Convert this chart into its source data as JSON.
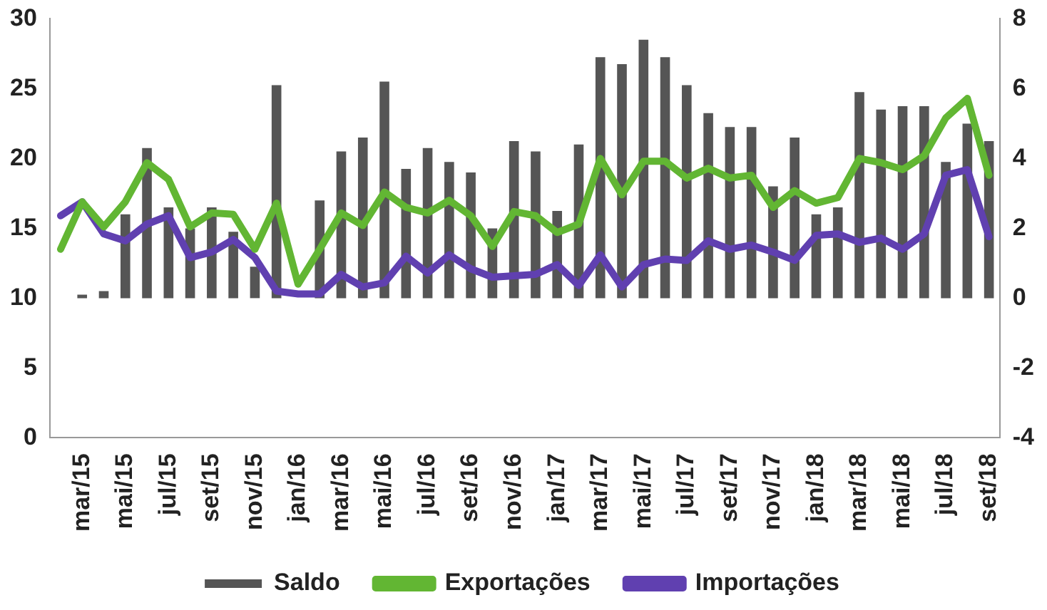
{
  "chart_data": {
    "type": "bar",
    "categories": [
      null,
      "mar/15",
      null,
      "mai/15",
      null,
      "jul/15",
      null,
      "set/15",
      null,
      "nov/15",
      null,
      "jan/16",
      null,
      "mar/16",
      null,
      "mai/16",
      null,
      "jul/16",
      null,
      "set/16",
      null,
      "nov/16",
      null,
      "jan/17",
      null,
      "mar/17",
      null,
      "mai/17",
      null,
      "jul/17",
      null,
      "set/17",
      null,
      "nov/17",
      null,
      "jan/18",
      null,
      "mar/18",
      null,
      "mai/18",
      null,
      "jul/18",
      null,
      "set/18"
    ],
    "series": [
      {
        "name": "Saldo",
        "axis": "y2",
        "color": "#555555",
        "values": [
          null,
          0.1,
          0.2,
          2.4,
          4.3,
          2.6,
          2.0,
          2.6,
          1.9,
          0.9,
          6.1,
          null,
          2.8,
          4.2,
          4.6,
          6.2,
          3.7,
          4.3,
          3.9,
          3.6,
          2.0,
          4.5,
          4.2,
          2.5,
          4.4,
          6.9,
          6.7,
          7.4,
          6.9,
          6.1,
          5.3,
          4.9,
          4.9,
          3.2,
          4.6,
          2.4,
          2.6,
          5.9,
          5.4,
          5.5,
          5.5,
          3.9,
          5.0,
          4.5
        ]
      },
      {
        "name": "Exportações",
        "type": "line",
        "color": "#62b633",
        "values": [
          13.5,
          16.9,
          15.1,
          16.9,
          19.7,
          18.5,
          15.1,
          16.1,
          16.0,
          13.5,
          16.8,
          11.0,
          13.5,
          16.1,
          15.2,
          17.6,
          16.5,
          16.1,
          17.0,
          15.9,
          13.7,
          16.2,
          15.9,
          14.7,
          15.3,
          20.0,
          17.4,
          19.8,
          19.8,
          18.6,
          19.3,
          18.6,
          18.8,
          16.5,
          17.7,
          16.8,
          17.2,
          20.0,
          19.7,
          19.2,
          20.2,
          22.9,
          24.3,
          18.8
        ]
      },
      {
        "name": "Importações",
        "type": "line",
        "color": "#6040b0",
        "values": [
          15.9,
          16.9,
          14.6,
          14.1,
          15.3,
          15.9,
          12.9,
          13.3,
          14.2,
          12.9,
          10.5,
          10.3,
          10.3,
          11.7,
          10.8,
          11.1,
          13.0,
          11.8,
          13.1,
          12.1,
          11.5,
          11.6,
          11.7,
          12.4,
          10.9,
          13.1,
          10.8,
          12.4,
          12.8,
          12.7,
          14.1,
          13.5,
          13.8,
          13.3,
          12.7,
          14.5,
          14.6,
          14.0,
          14.3,
          13.5,
          14.6,
          18.8,
          19.2,
          14.4
        ]
      }
    ],
    "ylim": [
      0,
      30
    ],
    "yticks": [
      0,
      5,
      10,
      15,
      20,
      25,
      30
    ],
    "y2lim": [
      -4,
      8
    ],
    "y2ticks": [
      -4,
      -2,
      0,
      2,
      4,
      6,
      8
    ],
    "grid": false,
    "legend": "bottom",
    "marker": "none",
    "line_style": "solid"
  }
}
